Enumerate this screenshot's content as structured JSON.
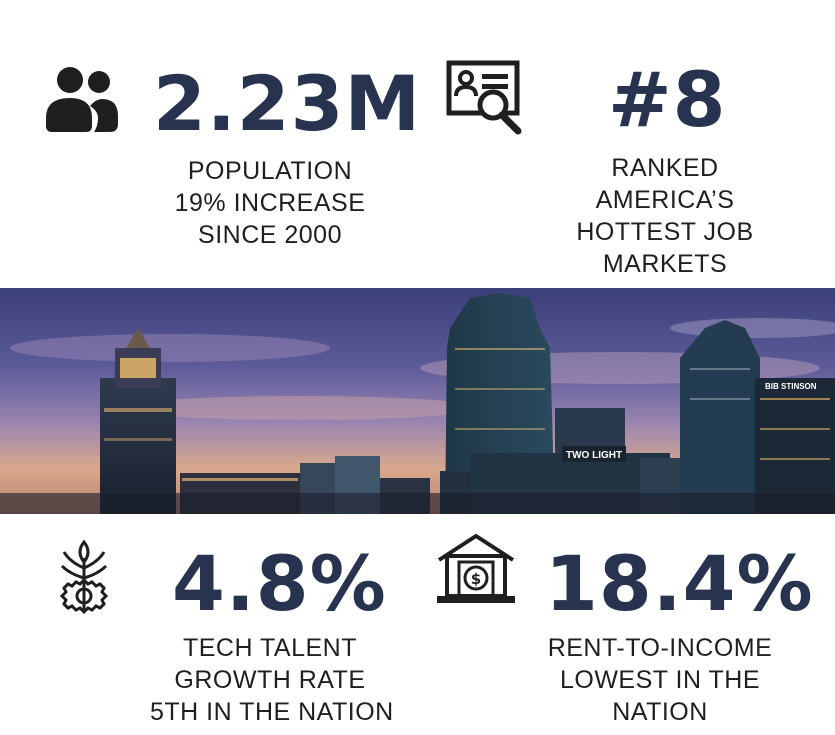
{
  "stats": {
    "population": {
      "value": "2.23M",
      "lines": [
        "POPULATION",
        "19% INCREASE",
        "SINCE 2000"
      ],
      "icon": "people-icon"
    },
    "job_market": {
      "value": "#8",
      "lines": [
        "RANKED",
        "AMERICA’S",
        "HOTTEST JOB",
        "MARKETS"
      ],
      "icon": "resume-search-icon"
    },
    "tech_talent": {
      "value": "4.8%",
      "lines": [
        "TECH TALENT",
        "GROWTH RATE",
        "5TH IN THE NATION"
      ],
      "icon": "gear-plant-icon"
    },
    "rent": {
      "value": "18.4%",
      "lines": [
        "RENT-TO-INCOME",
        "LOWEST IN THE",
        "NATION"
      ],
      "icon": "house-dollar-icon"
    }
  },
  "photo": {
    "sign_two_light": "TWO LIGHT",
    "sign_stinson": "BIB STINSON"
  },
  "colors": {
    "navy": "#27334f",
    "text": "#1f1f1f"
  }
}
